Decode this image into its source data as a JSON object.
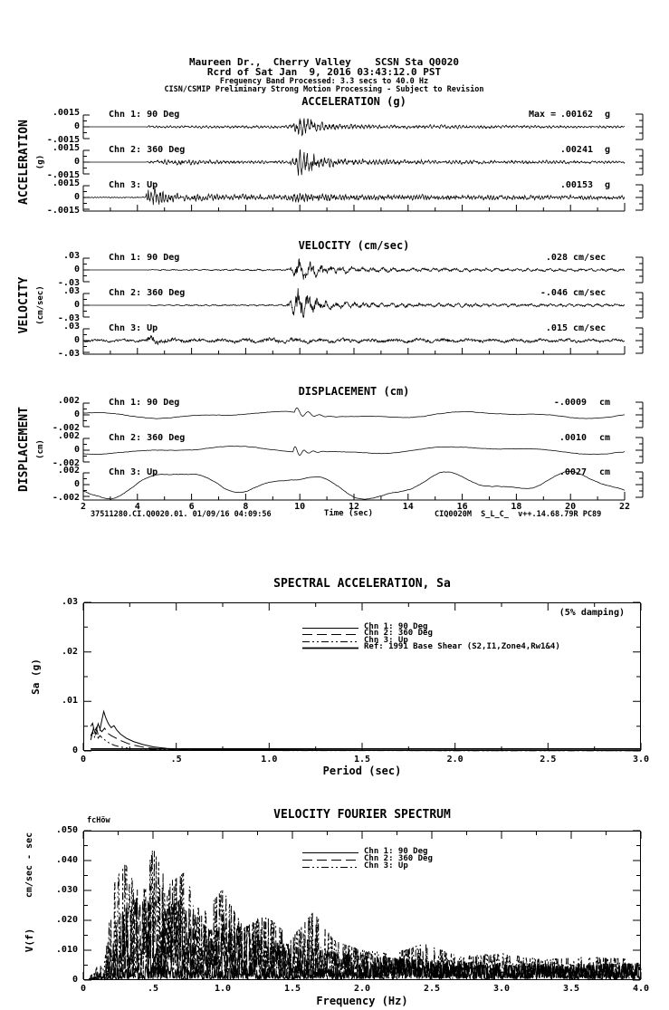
{
  "header": {
    "line1": "Maureen Dr.,  Cherry Valley    SCSN Sta Q0020",
    "line2": "Rcrd of Sat Jan  9, 2016 03:43:12.0 PST",
    "line3": "Frequency Band Processed: 3.3 secs to 40.0 Hz",
    "line4": "CISN/CSMIP Preliminary Strong Motion Processing - Subject to Revision"
  },
  "footer": {
    "left": "37511280.CI.Q0020.01. 01/09/16 04:09:56",
    "right": "CIQ0020M  S_L_C_  v++.14.68.79R PC89"
  },
  "chart_data": [
    {
      "id": "acceleration",
      "type": "line",
      "title": "ACCELERATION (g)",
      "ylabel": "ACCELERATION",
      "yunit": "(g)",
      "xlim": [
        2,
        22
      ],
      "full_scale": 0.0015,
      "y_tick_labels": [
        ".0015",
        "0",
        "-.0015"
      ],
      "channels": [
        {
          "label": "Chn 1: 90 Deg",
          "max_prefix": "Max =",
          "peak": ".00162",
          "unit": "g",
          "kind": "burst",
          "freq": 7.5,
          "seed": 101,
          "env": [
            [
              2,
              0
            ],
            [
              4.3,
              0
            ],
            [
              4.4,
              0.00013
            ],
            [
              9.55,
              0.00015
            ],
            [
              9.8,
              0.00055
            ],
            [
              10.0,
              0.0013
            ],
            [
              10.25,
              0.001
            ],
            [
              10.7,
              0.00055
            ],
            [
              11.5,
              0.0003
            ],
            [
              13,
              0.00022
            ],
            [
              16,
              0.00018
            ],
            [
              22,
              0.00013
            ]
          ]
        },
        {
          "label": "Chn 2: 360 Deg",
          "peak": ".00241",
          "unit": "g",
          "kind": "burst",
          "freq": 7.8,
          "seed": 202,
          "env": [
            [
              2,
              0
            ],
            [
              4.3,
              0
            ],
            [
              4.4,
              0.00014
            ],
            [
              5.8,
              0.00035
            ],
            [
              6.3,
              0.0002
            ],
            [
              9.55,
              0.00016
            ],
            [
              9.8,
              0.0006
            ],
            [
              10.0,
              0.0022
            ],
            [
              10.3,
              0.0013
            ],
            [
              10.9,
              0.0006
            ],
            [
              12,
              0.00035
            ],
            [
              15,
              0.00022
            ],
            [
              22,
              0.00014
            ]
          ]
        },
        {
          "label": "Chn 3: Up",
          "peak": ".00153",
          "unit": "g",
          "kind": "burst",
          "freq": 9.5,
          "seed": 303,
          "env": [
            [
              2,
              5e-05
            ],
            [
              4.3,
              7e-05
            ],
            [
              4.42,
              0.0014
            ],
            [
              4.75,
              0.00085
            ],
            [
              5.3,
              0.00045
            ],
            [
              6.5,
              0.00032
            ],
            [
              9.5,
              0.0003
            ],
            [
              9.85,
              0.0006
            ],
            [
              10.4,
              0.00045
            ],
            [
              11.5,
              0.00032
            ],
            [
              16,
              0.00027
            ],
            [
              22,
              0.00022
            ]
          ]
        }
      ]
    },
    {
      "id": "velocity",
      "type": "line",
      "title": "VELOCITY (cm/sec)",
      "ylabel": "VELOCITY",
      "yunit": "(cm/sec)",
      "xlim": [
        2,
        22
      ],
      "full_scale": 0.03,
      "y_tick_labels": [
        ".03",
        "0",
        "-.03"
      ],
      "channels": [
        {
          "label": "Chn 1: 90 Deg",
          "peak": ".028",
          "unit": "cm/sec",
          "kind": "burst",
          "freq": 2.6,
          "seed": 404,
          "env": [
            [
              2,
              0
            ],
            [
              4.35,
              0
            ],
            [
              4.45,
              0.0012
            ],
            [
              6,
              0.0016
            ],
            [
              9.5,
              0.002
            ],
            [
              9.75,
              0.009
            ],
            [
              9.95,
              0.027
            ],
            [
              10.35,
              0.018
            ],
            [
              11,
              0.01
            ],
            [
              12,
              0.006
            ],
            [
              14,
              0.0045
            ],
            [
              18,
              0.0035
            ],
            [
              22,
              0.003
            ]
          ]
        },
        {
          "label": "Chn 2: 360 Deg",
          "peak": "-.046",
          "unit": "cm/sec",
          "kind": "burst",
          "freq": 2.9,
          "seed": 505,
          "env": [
            [
              2,
              0
            ],
            [
              4.35,
              0
            ],
            [
              4.45,
              0.0012
            ],
            [
              6,
              0.0015
            ],
            [
              9.5,
              0.002
            ],
            [
              9.7,
              0.012
            ],
            [
              9.9,
              0.045
            ],
            [
              10.25,
              0.026
            ],
            [
              10.8,
              0.013
            ],
            [
              11.5,
              0.007
            ],
            [
              13,
              0.005
            ],
            [
              17,
              0.0038
            ],
            [
              22,
              0.003
            ]
          ]
        },
        {
          "label": "Chn 3: Up",
          "peak": ".015",
          "unit": "cm/sec",
          "kind": "burst",
          "freq": 1.1,
          "seed": 606,
          "env": [
            [
              2,
              0.0035
            ],
            [
              4.3,
              0.004
            ],
            [
              4.45,
              0.013
            ],
            [
              4.9,
              0.008
            ],
            [
              5.6,
              0.0055
            ],
            [
              7.5,
              0.0048
            ],
            [
              9.7,
              0.0065
            ],
            [
              10.5,
              0.0055
            ],
            [
              13,
              0.005
            ],
            [
              17,
              0.0045
            ],
            [
              22,
              0.0042
            ]
          ]
        }
      ]
    },
    {
      "id": "displacement",
      "type": "line",
      "title": "DISPLACEMENT (cm)",
      "ylabel": "DISPLACEMENT",
      "yunit": "(cm)",
      "xlim": [
        2,
        22
      ],
      "full_scale": 0.002,
      "xlabel": "Time (sec)",
      "x_tick_labels": [
        "2",
        "4",
        "6",
        "8",
        "10",
        "12",
        "14",
        "16",
        "18",
        "20",
        "22"
      ],
      "y_tick_labels": [
        ".002",
        "0",
        "-.002"
      ],
      "channels": [
        {
          "label": "Chn 1: 90 Deg",
          "peak": "-.0009",
          "unit": "cm",
          "kind": "smooth",
          "seed": 707,
          "components": [
            [
              0.00042,
              0.13,
              0.5
            ],
            [
              0.0002,
              0.31,
              2.1
            ]
          ],
          "noise": 7e-05,
          "wiggle": {
            "t": 9.8,
            "amp": 0.00095,
            "freq": 2.4,
            "tau": 0.5
          }
        },
        {
          "label": "Chn 2: 360 Deg",
          "peak": ".0010",
          "unit": "cm",
          "kind": "smooth",
          "seed": 808,
          "components": [
            [
              0.00048,
              0.11,
              2.8
            ],
            [
              0.00022,
              0.27,
              0.9
            ]
          ],
          "noise": 7e-05,
          "wiggle": {
            "t": 9.75,
            "amp": 0.0011,
            "freq": 3.0,
            "tau": 0.35
          }
        },
        {
          "label": "Chn 3: Up",
          "peak": ".0027",
          "unit": "cm",
          "kind": "smooth",
          "seed": 909,
          "components": [
            [
              0.0016,
              0.2,
              1.2
            ],
            [
              0.0008,
              0.09,
              4.0
            ],
            [
              0.00045,
              0.45,
              2.0
            ]
          ],
          "noise": 0.0001
        }
      ]
    },
    {
      "id": "spectral_acceleration",
      "type": "line",
      "title": "SPECTRAL ACCELERATION, Sa",
      "annotation": "(5% damping)",
      "xlabel": "Period (sec)",
      "ylabel": "Sa (g)",
      "xlim": [
        0,
        3
      ],
      "ylim": [
        0,
        0.03
      ],
      "x_tick_labels": [
        "0",
        ".5",
        "1.0",
        "1.5",
        "2.0",
        "2.5",
        "3.0"
      ],
      "y_tick_labels": [
        ".03",
        ".02",
        ".01",
        "0"
      ],
      "series": [
        {
          "name": "Chn 1: 90 Deg",
          "style": "solid",
          "points": [
            [
              0.04,
              0.0022
            ],
            [
              0.055,
              0.0046
            ],
            [
              0.065,
              0.0034
            ],
            [
              0.08,
              0.0055
            ],
            [
              0.09,
              0.0044
            ],
            [
              0.1,
              0.0062
            ],
            [
              0.11,
              0.008
            ],
            [
              0.12,
              0.0068
            ],
            [
              0.135,
              0.0055
            ],
            [
              0.15,
              0.0047
            ],
            [
              0.165,
              0.0051
            ],
            [
              0.18,
              0.0042
            ],
            [
              0.2,
              0.0034
            ],
            [
              0.23,
              0.0026
            ],
            [
              0.27,
              0.0019
            ],
            [
              0.32,
              0.0013
            ],
            [
              0.38,
              0.0008
            ],
            [
              0.45,
              0.0005
            ],
            [
              0.55,
              0.00035
            ],
            [
              0.7,
              0.00025
            ],
            [
              0.9,
              0.0002
            ],
            [
              1.2,
              0.00015
            ],
            [
              1.6,
              0.0001
            ],
            [
              2.2,
              0.0001
            ],
            [
              3.0,
              8e-05
            ]
          ]
        },
        {
          "name": "Chn 2: 360 Deg",
          "style": "dash",
          "points": [
            [
              0.04,
              0.005
            ],
            [
              0.05,
              0.0056
            ],
            [
              0.06,
              0.0038
            ],
            [
              0.07,
              0.0047
            ],
            [
              0.08,
              0.0033
            ],
            [
              0.09,
              0.0043
            ],
            [
              0.1,
              0.0039
            ],
            [
              0.115,
              0.0046
            ],
            [
              0.13,
              0.0036
            ],
            [
              0.15,
              0.0031
            ],
            [
              0.17,
              0.0027
            ],
            [
              0.2,
              0.0021
            ],
            [
              0.24,
              0.0015
            ],
            [
              0.28,
              0.0011
            ],
            [
              0.33,
              0.0007
            ],
            [
              0.4,
              0.00045
            ],
            [
              0.5,
              0.0003
            ],
            [
              0.65,
              0.0002
            ],
            [
              0.9,
              0.00015
            ],
            [
              1.3,
              0.0001
            ],
            [
              2.0,
              8e-05
            ],
            [
              3.0,
              7e-05
            ]
          ]
        },
        {
          "name": "Chn 3: Up",
          "style": "dashdot",
          "points": [
            [
              0.04,
              0.003
            ],
            [
              0.05,
              0.0039
            ],
            [
              0.06,
              0.0028
            ],
            [
              0.07,
              0.0036
            ],
            [
              0.08,
              0.0026
            ],
            [
              0.09,
              0.0031
            ],
            [
              0.1,
              0.0027
            ],
            [
              0.12,
              0.0021
            ],
            [
              0.14,
              0.0016
            ],
            [
              0.17,
              0.0011
            ],
            [
              0.2,
              0.0008
            ],
            [
              0.25,
              0.0005
            ],
            [
              0.3,
              0.00035
            ],
            [
              0.4,
              0.00022
            ],
            [
              0.55,
              0.00015
            ],
            [
              0.8,
              0.0001
            ],
            [
              1.2,
              8e-05
            ],
            [
              2.0,
              6e-05
            ],
            [
              3.0,
              5e-05
            ]
          ]
        },
        {
          "name": "Ref: 1991 Base Shear (S2,I1,Zone4,Rw1&4)",
          "style": "ref",
          "points": [
            [
              0.04,
              0.00038
            ],
            [
              3.0,
              0.00038
            ]
          ]
        }
      ]
    },
    {
      "id": "velocity_fourier_spectrum",
      "type": "line",
      "title": "VELOCITY FOURIER SPECTRUM",
      "corner_label": "fcHöw",
      "xlabel": "Frequency (Hz)",
      "ylabel": "V(f)",
      "yunit": "cm/sec - sec",
      "xlim": [
        0,
        4
      ],
      "ylim": [
        0,
        0.05
      ],
      "x_tick_labels": [
        "0",
        ".5",
        "1.0",
        "1.5",
        "2.0",
        "2.5",
        "3.0",
        "3.5",
        "4.0"
      ],
      "y_tick_labels": [
        ".050",
        ".040",
        ".030",
        ".020",
        ".010",
        "0"
      ],
      "series": [
        {
          "name": "Chn 1: 90 Deg",
          "style": "solid",
          "seed": 21,
          "env": [
            [
              0.04,
              0.0003
            ],
            [
              0.3,
              0.003
            ],
            [
              0.5,
              0.0045
            ],
            [
              0.8,
              0.003
            ],
            [
              1.2,
              0.0035
            ],
            [
              1.6,
              0.003
            ],
            [
              2.0,
              0.004
            ],
            [
              2.3,
              0.0065
            ],
            [
              2.6,
              0.004
            ],
            [
              3.0,
              0.0045
            ],
            [
              3.5,
              0.004
            ],
            [
              4.0,
              0.005
            ]
          ]
        },
        {
          "name": "Chn 2: 360 Deg",
          "style": "dash",
          "seed": 22,
          "env": [
            [
              0.04,
              0.0004
            ],
            [
              0.2,
              0.01
            ],
            [
              0.3,
              0.022
            ],
            [
              0.45,
              0.028
            ],
            [
              0.55,
              0.02
            ],
            [
              0.7,
              0.025
            ],
            [
              0.9,
              0.015
            ],
            [
              1.05,
              0.018
            ],
            [
              1.3,
              0.012
            ],
            [
              1.6,
              0.01
            ],
            [
              2.0,
              0.007
            ],
            [
              2.5,
              0.006
            ],
            [
              3.0,
              0.005
            ],
            [
              3.5,
              0.0045
            ],
            [
              4.0,
              0.005
            ]
          ]
        },
        {
          "name": "Chn 3: Up",
          "style": "dashdot",
          "seed": 23,
          "env": [
            [
              0.04,
              0.0005
            ],
            [
              0.15,
              0.004
            ],
            [
              0.22,
              0.03
            ],
            [
              0.3,
              0.036
            ],
            [
              0.42,
              0.025
            ],
            [
              0.5,
              0.041
            ],
            [
              0.6,
              0.03
            ],
            [
              0.72,
              0.033
            ],
            [
              0.85,
              0.02
            ],
            [
              1.0,
              0.028
            ],
            [
              1.15,
              0.016
            ],
            [
              1.3,
              0.02
            ],
            [
              1.5,
              0.013
            ],
            [
              1.65,
              0.021
            ],
            [
              1.8,
              0.012
            ],
            [
              2.0,
              0.009
            ],
            [
              2.2,
              0.008
            ],
            [
              2.45,
              0.011
            ],
            [
              2.7,
              0.007
            ],
            [
              3.0,
              0.008
            ],
            [
              3.3,
              0.006
            ],
            [
              3.6,
              0.007
            ],
            [
              4.0,
              0.006
            ]
          ]
        }
      ]
    }
  ]
}
